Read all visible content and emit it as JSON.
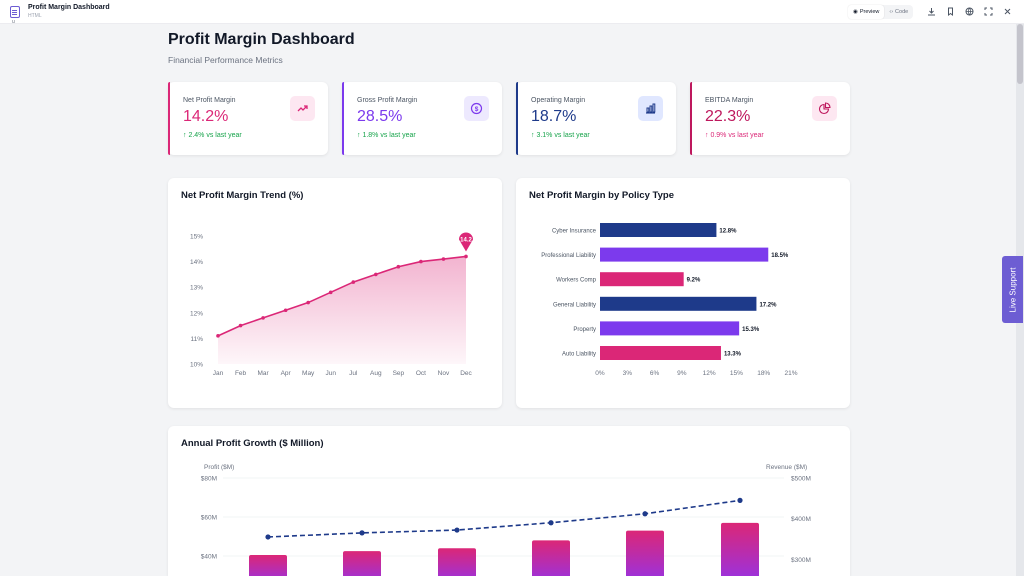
{
  "app": {
    "title": "Profit Margin Dashboard",
    "subtitle": "HTML",
    "sidebar_glyph": "u"
  },
  "toolbar": {
    "preview_label": "Preview",
    "code_label": "Code",
    "icons": [
      "download-icon",
      "bookmark-icon",
      "globe-icon",
      "fullscreen-icon",
      "close-icon"
    ]
  },
  "page": {
    "title": "Profit Margin Dashboard",
    "subtitle": "Financial Performance Metrics"
  },
  "kpis": [
    {
      "label": "Net Profit Margin",
      "value": "14.2%",
      "trend": "↑ 2.4% vs last year",
      "accent": "#db2777",
      "value_color": "#db2777",
      "trend_color": "#16a34a",
      "icon": "trend-up-icon",
      "icon_bg": "#fde7f1"
    },
    {
      "label": "Gross Profit Margin",
      "value": "28.5%",
      "trend": "↑ 1.8% vs last year",
      "accent": "#7c3aed",
      "value_color": "#7c3aed",
      "trend_color": "#16a34a",
      "icon": "dollar-icon",
      "icon_bg": "#ede9fe"
    },
    {
      "label": "Operating Margin",
      "value": "18.7%",
      "trend": "↑ 3.1% vs last year",
      "accent": "#1e3a8a",
      "value_color": "#1e3a8a",
      "trend_color": "#16a34a",
      "icon": "bar-chart-icon",
      "icon_bg": "#e0e7ff"
    },
    {
      "label": "EBITDA Margin",
      "value": "22.3%",
      "trend": "↑ 0.9% vs last year",
      "accent": "#be185d",
      "value_color": "#be185d",
      "trend_color": "#db2777",
      "icon": "pie-chart-icon",
      "icon_bg": "#fde7f1"
    }
  ],
  "live_support": "Live Support",
  "chart_data": [
    {
      "type": "area",
      "title": "Net Profit Margin Trend (%)",
      "categories": [
        "Jan",
        "Feb",
        "Mar",
        "Apr",
        "May",
        "Jun",
        "Jul",
        "Aug",
        "Sep",
        "Oct",
        "Nov",
        "Dec"
      ],
      "values": [
        11.1,
        11.5,
        11.8,
        12.1,
        12.4,
        12.8,
        13.2,
        13.5,
        13.8,
        14.0,
        14.1,
        14.2
      ],
      "yticks": [
        "10%",
        "11%",
        "12%",
        "13%",
        "14%",
        "15%"
      ],
      "ylim": [
        10,
        15
      ],
      "highlight_label": "14.2",
      "color": "#db2777"
    },
    {
      "type": "bar",
      "title": "Net Profit Margin by Policy Type",
      "orientation": "horizontal",
      "categories": [
        "Cyber Insurance",
        "Professional Liability",
        "Workers Comp",
        "General Liability",
        "Property",
        "Auto Liability"
      ],
      "values": [
        12.8,
        18.5,
        9.2,
        17.2,
        15.3,
        13.3
      ],
      "value_labels": [
        "12.8%",
        "18.5%",
        "9.2%",
        "17.2%",
        "15.3%",
        "13.3%"
      ],
      "colors": [
        "#1e3a8a",
        "#7c3aed",
        "#db2777",
        "#1e3a8a",
        "#7c3aed",
        "#db2777"
      ],
      "xticks": [
        "0%",
        "3%",
        "6%",
        "9%",
        "12%",
        "15%",
        "18%",
        "21%"
      ],
      "xlim": [
        0,
        21
      ]
    },
    {
      "type": "bar",
      "title": "Annual Profit Growth ($ Million)",
      "ylabel_left": "Profit ($M)",
      "ylabel_right": "Revenue ($M)",
      "yticks_left": [
        "$40M",
        "$60M",
        "$80M"
      ],
      "yticks_right": [
        "$200M",
        "$300M",
        "$400M",
        "$500M"
      ],
      "ylim_left": [
        20,
        85
      ],
      "ylim_right": [
        100,
        520
      ],
      "series": [
        {
          "name": "Profit ($M)",
          "type": "bar",
          "values": [
            40.5,
            42.5,
            44,
            48,
            53,
            57
          ]
        },
        {
          "name": "Revenue ($M)",
          "type": "line",
          "values": [
            355,
            365,
            372,
            390,
            412,
            445
          ]
        }
      ],
      "colors": {
        "bar_top": "#db2777",
        "bar_bottom": "#9333ea",
        "line": "#1e3a8a"
      }
    }
  ]
}
